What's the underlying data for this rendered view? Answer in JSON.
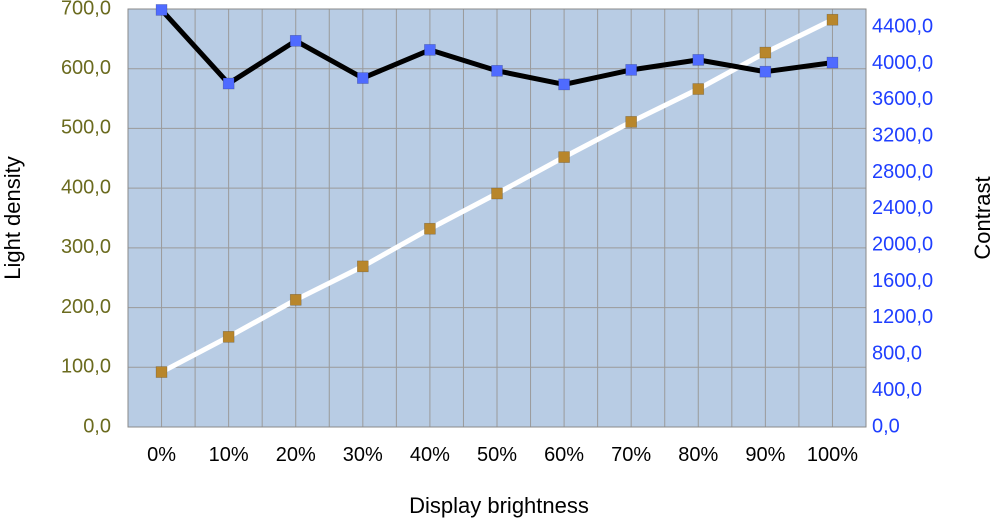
{
  "chart_data": {
    "type": "line",
    "title": "",
    "xlabel": "Display brightness",
    "ylabel_left": "Light density",
    "ylabel_right": "Contrast",
    "categories": [
      "0%",
      "10%",
      "20%",
      "30%",
      "40%",
      "50%",
      "60%",
      "70%",
      "80%",
      "90%",
      "100%"
    ],
    "y_left": {
      "lim": [
        0,
        700
      ],
      "ticks": [
        0,
        100,
        200,
        300,
        400,
        500,
        600,
        700
      ],
      "tick_labels": [
        "0,0",
        "100,0",
        "200,0",
        "300,0",
        "400,0",
        "500,0",
        "600,0",
        "700,0"
      ],
      "tick_color": "#6b6b1f"
    },
    "y_right": {
      "lim": [
        0,
        4600
      ],
      "ticks": [
        0,
        400,
        800,
        1200,
        1600,
        2000,
        2400,
        2800,
        3200,
        3600,
        4000,
        4400
      ],
      "tick_labels": [
        "0,0",
        "400,0",
        "800,0",
        "1200,0",
        "1600,0",
        "2000,0",
        "2400,0",
        "2800,0",
        "3200,0",
        "3600,0",
        "4000,0",
        "4400,0"
      ],
      "tick_color": "#1f3fff"
    },
    "grid": true,
    "plot_background": "#b8cce4",
    "series": [
      {
        "axis": "left",
        "line_color": "#ffffff",
        "marker_color": "#b8862b",
        "values": [
          92,
          151,
          213,
          269,
          332,
          391,
          452,
          511,
          566,
          627,
          682
        ]
      },
      {
        "axis": "right",
        "line_color": "#000000",
        "marker_color": "#4f6bff",
        "values": [
          4590,
          3780,
          4250,
          3840,
          4150,
          3920,
          3770,
          3930,
          4040,
          3910,
          4010
        ]
      }
    ]
  }
}
